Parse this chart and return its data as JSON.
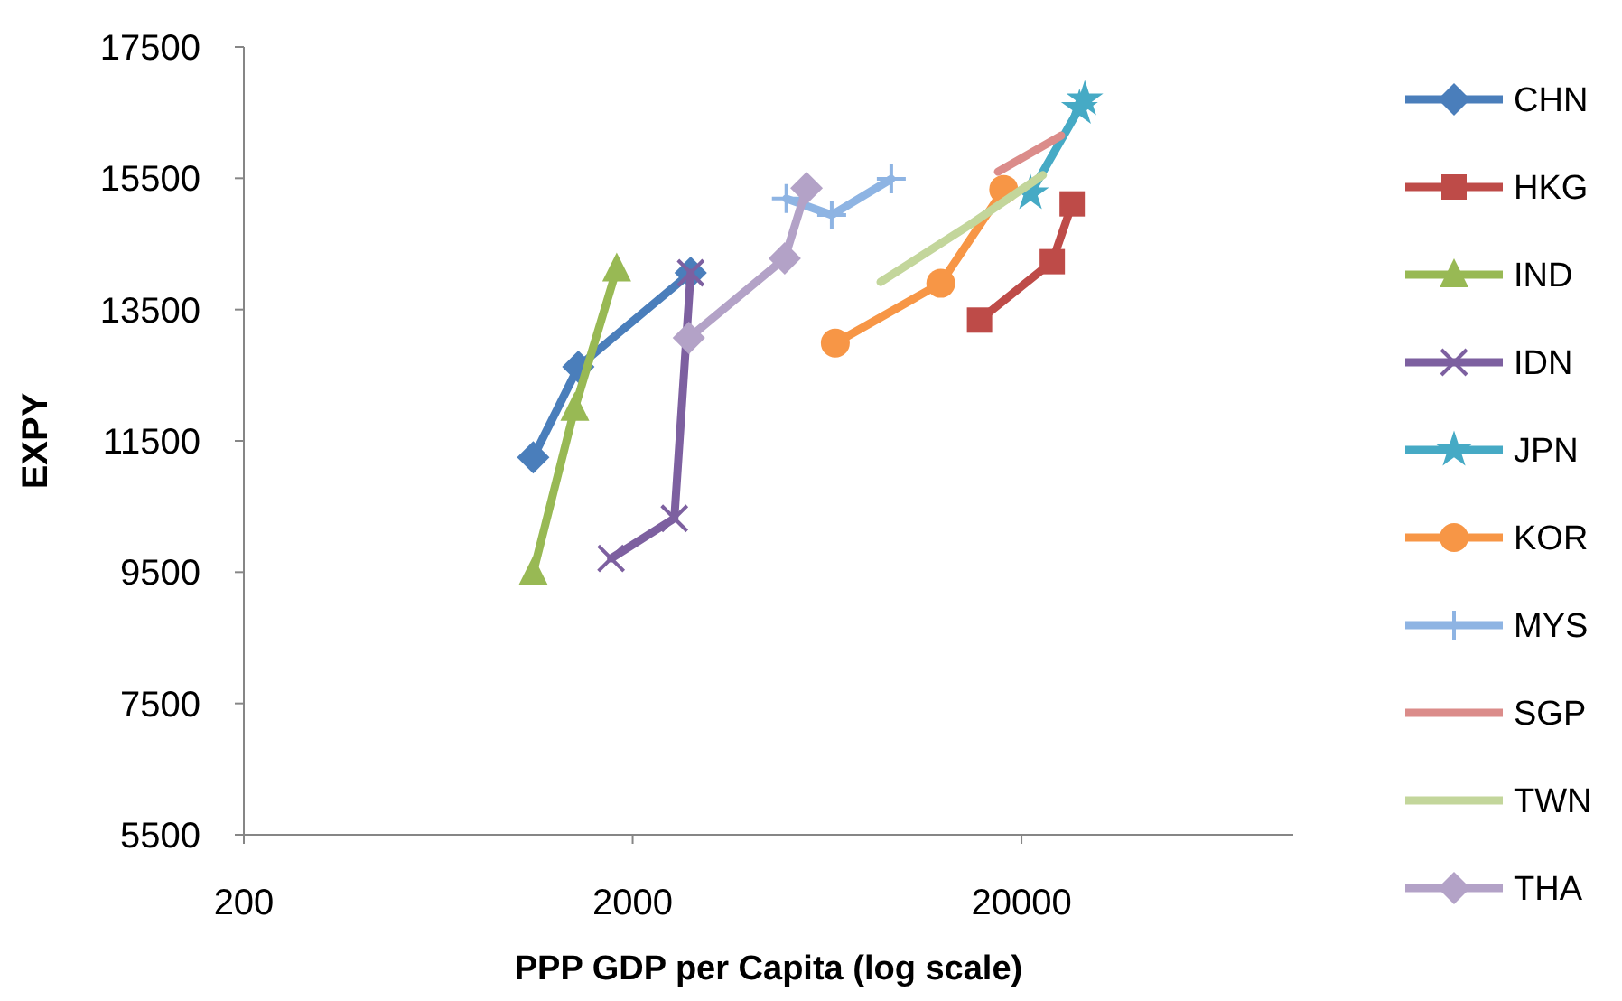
{
  "chart_data": {
    "type": "line",
    "xlabel": "PPP GDP per Capita (log scale)",
    "ylabel": "EXPY",
    "log": "x",
    "xlim": [
      200,
      100000
    ],
    "xticks": [
      200,
      2000,
      20000
    ],
    "ylim": [
      5500,
      17500
    ],
    "yticks": [
      5500,
      7500,
      9500,
      11500,
      13500,
      15500,
      17500
    ],
    "grid": false,
    "legend": "right",
    "series": [
      {
        "name": "CHN",
        "color": "#4a7ebb",
        "marker": "diamond",
        "x": [
          1110,
          1450,
          2820
        ],
        "values": [
          11250,
          12630,
          14060
        ]
      },
      {
        "name": "HKG",
        "color": "#be4b48",
        "marker": "square",
        "x": [
          15600,
          24000,
          27000
        ],
        "values": [
          13340,
          14230,
          15110
        ]
      },
      {
        "name": "IND",
        "color": "#98b954",
        "marker": "triangle",
        "x": [
          1110,
          1420,
          1820
        ],
        "values": [
          9500,
          12000,
          14120
        ]
      },
      {
        "name": "IDN",
        "color": "#7d60a0",
        "marker": "cross",
        "x": [
          1760,
          2560,
          2820
        ],
        "values": [
          9710,
          10320,
          14060
        ]
      },
      {
        "name": "JPN",
        "color": "#46aac5",
        "marker": "star",
        "x": [
          21100,
          28200,
          29100
        ],
        "values": [
          15270,
          16570,
          16700
        ]
      },
      {
        "name": "KOR",
        "color": "#f79646",
        "marker": "circle",
        "x": [
          6640,
          12400,
          18000
        ],
        "values": [
          12990,
          13900,
          15330
        ]
      },
      {
        "name": "MYS",
        "color": "#8eb4e3",
        "marker": "plus",
        "x": [
          4970,
          6500,
          9250
        ],
        "values": [
          15190,
          14940,
          15490
        ]
      },
      {
        "name": "SGP",
        "color": "#db8c8a",
        "marker": "none",
        "x": [
          17400,
          25300
        ],
        "values": [
          15600,
          16150
        ]
      },
      {
        "name": "TWN",
        "color": "#c3d69b",
        "marker": "none",
        "x": [
          8680,
          14800,
          22700
        ],
        "values": [
          13920,
          14800,
          15550
        ]
      },
      {
        "name": "THA",
        "color": "#b3a2c7",
        "marker": "diamond",
        "x": [
          2790,
          4920,
          5600
        ],
        "values": [
          13070,
          14280,
          15350
        ]
      }
    ]
  }
}
